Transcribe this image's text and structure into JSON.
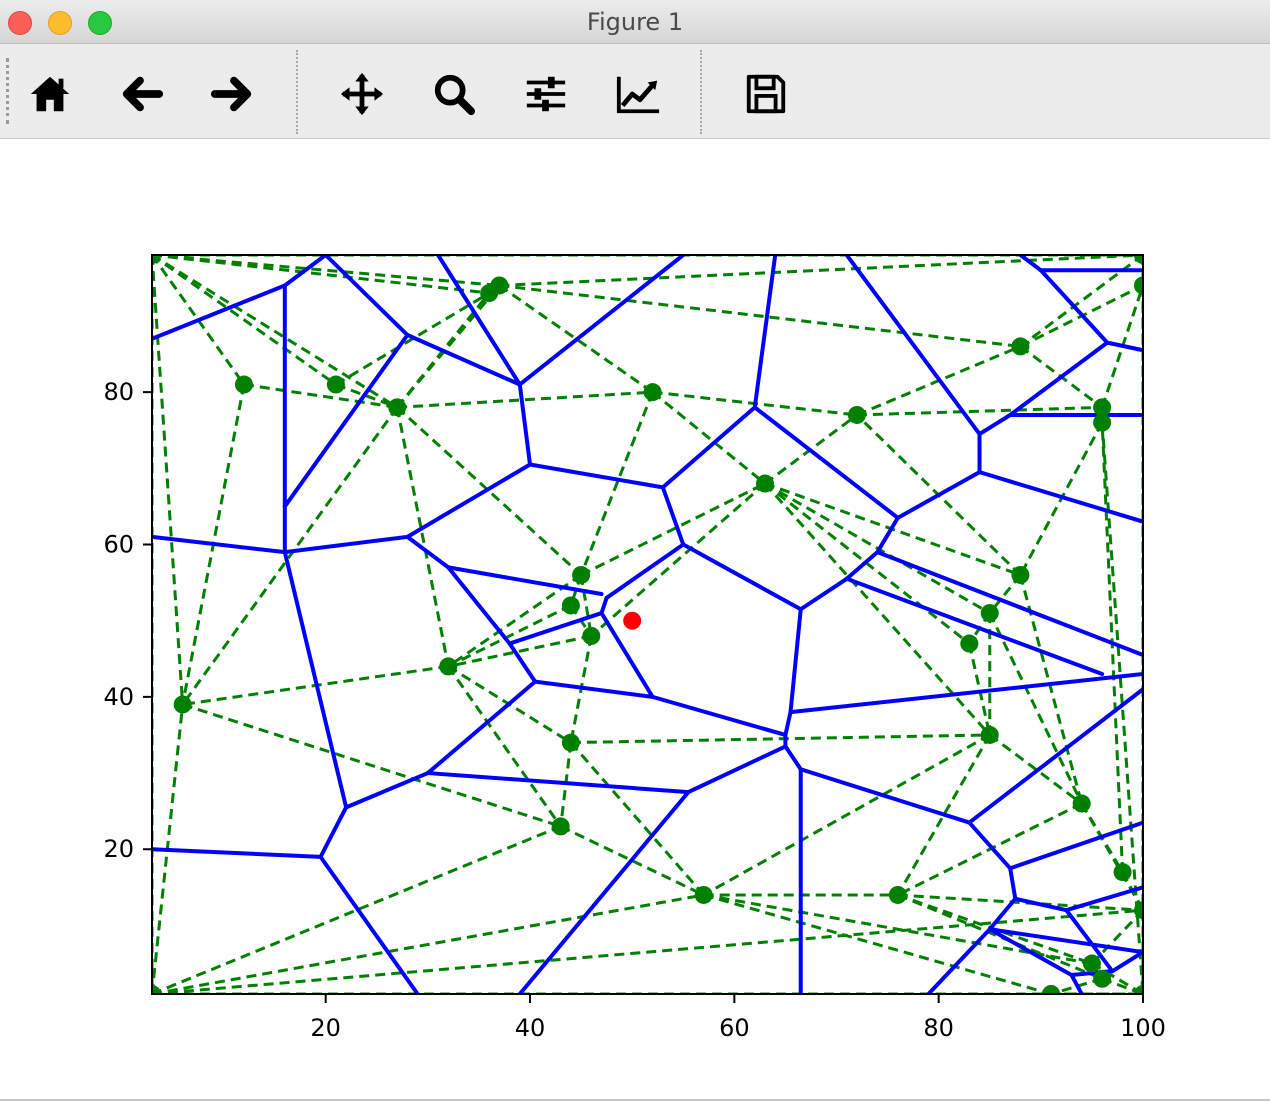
{
  "window": {
    "title": "Figure 1"
  },
  "toolbar": {
    "buttons": [
      {
        "name": "home",
        "icon": "home-icon"
      },
      {
        "name": "back",
        "icon": "arrow-left-icon"
      },
      {
        "name": "forward",
        "icon": "arrow-right-icon"
      },
      {
        "name": "pan",
        "icon": "move-icon"
      },
      {
        "name": "zoom",
        "icon": "magnifier-icon"
      },
      {
        "name": "configure-subplots",
        "icon": "sliders-icon"
      },
      {
        "name": "edit-axis",
        "icon": "line-chart-icon"
      },
      {
        "name": "save",
        "icon": "floppy-disk-icon"
      }
    ]
  },
  "chart_data": {
    "type": "scatter",
    "title": "",
    "xlabel": "",
    "ylabel": "",
    "xlim": [
      3,
      100
    ],
    "ylim": [
      1,
      98
    ],
    "x_ticks": [
      20,
      40,
      60,
      80,
      100
    ],
    "y_ticks": [
      20,
      40,
      60,
      80
    ],
    "grid": false,
    "colors": {
      "points": "#008000",
      "edges": "#008000",
      "voronoi": "#0000ff",
      "highlight": "#ff0000"
    },
    "points": [
      [
        3,
        98
      ],
      [
        100,
        98
      ],
      [
        3,
        1
      ],
      [
        100,
        1
      ],
      [
        12,
        81
      ],
      [
        21,
        81
      ],
      [
        27,
        78
      ],
      [
        36,
        93
      ],
      [
        37,
        94
      ],
      [
        52,
        80
      ],
      [
        72,
        77
      ],
      [
        88,
        86
      ],
      [
        96,
        78
      ],
      [
        96,
        76
      ],
      [
        100,
        94
      ],
      [
        63,
        68
      ],
      [
        45,
        56
      ],
      [
        88,
        56
      ],
      [
        85,
        51
      ],
      [
        83,
        47
      ],
      [
        44,
        52
      ],
      [
        46,
        48
      ],
      [
        32,
        44
      ],
      [
        6,
        39
      ],
      [
        44,
        34
      ],
      [
        85,
        35
      ],
      [
        94,
        26
      ],
      [
        43,
        23
      ],
      [
        98,
        17
      ],
      [
        57,
        14
      ],
      [
        76,
        14
      ],
      [
        100,
        12
      ],
      [
        95,
        5
      ],
      [
        96,
        3
      ],
      [
        91,
        1
      ]
    ],
    "highlight_point": [
      50,
      50
    ],
    "delaunay_edges": [
      [
        0,
        1
      ],
      [
        0,
        2
      ],
      [
        1,
        3
      ],
      [
        2,
        3
      ],
      [
        0,
        4
      ],
      [
        0,
        5
      ],
      [
        0,
        6
      ],
      [
        0,
        7
      ],
      [
        0,
        8
      ],
      [
        0,
        23
      ],
      [
        2,
        23
      ],
      [
        4,
        6
      ],
      [
        4,
        23
      ],
      [
        5,
        6
      ],
      [
        5,
        7
      ],
      [
        6,
        7
      ],
      [
        6,
        8
      ],
      [
        6,
        9
      ],
      [
        7,
        8
      ],
      [
        8,
        9
      ],
      [
        8,
        1
      ],
      [
        8,
        11
      ],
      [
        9,
        10
      ],
      [
        9,
        15
      ],
      [
        10,
        11
      ],
      [
        10,
        12
      ],
      [
        11,
        12
      ],
      [
        11,
        14
      ],
      [
        12,
        14
      ],
      [
        1,
        11
      ],
      [
        1,
        14
      ],
      [
        12,
        13
      ],
      [
        13,
        17
      ],
      [
        13,
        3
      ],
      [
        14,
        3
      ],
      [
        6,
        16
      ],
      [
        9,
        16
      ],
      [
        6,
        22
      ],
      [
        6,
        23
      ],
      [
        16,
        15
      ],
      [
        16,
        20
      ],
      [
        16,
        21
      ],
      [
        15,
        10
      ],
      [
        15,
        17
      ],
      [
        15,
        18
      ],
      [
        15,
        19
      ],
      [
        15,
        25
      ],
      [
        15,
        21
      ],
      [
        17,
        18
      ],
      [
        17,
        26
      ],
      [
        17,
        10
      ],
      [
        18,
        19
      ],
      [
        18,
        25
      ],
      [
        18,
        26
      ],
      [
        19,
        25
      ],
      [
        20,
        22
      ],
      [
        21,
        22
      ],
      [
        21,
        24
      ],
      [
        20,
        21
      ],
      [
        22,
        23
      ],
      [
        22,
        24
      ],
      [
        22,
        27
      ],
      [
        23,
        27
      ],
      [
        2,
        27
      ],
      [
        2,
        29
      ],
      [
        2,
        31
      ],
      [
        24,
        25
      ],
      [
        24,
        27
      ],
      [
        24,
        29
      ],
      [
        25,
        26
      ],
      [
        25,
        29
      ],
      [
        25,
        30
      ],
      [
        26,
        28
      ],
      [
        26,
        30
      ],
      [
        26,
        31
      ],
      [
        27,
        29
      ],
      [
        28,
        31
      ],
      [
        28,
        13
      ],
      [
        29,
        30
      ],
      [
        29,
        32
      ],
      [
        29,
        34
      ],
      [
        30,
        31
      ],
      [
        30,
        32
      ],
      [
        30,
        33
      ],
      [
        31,
        32
      ],
      [
        32,
        33
      ],
      [
        33,
        34
      ],
      [
        33,
        3
      ],
      [
        34,
        3
      ],
      [
        31,
        3
      ],
      [
        32,
        3
      ],
      [
        16,
        22
      ]
    ],
    "voronoi_edges": [
      [
        [
          3,
          87
        ],
        [
          16,
          94
        ]
      ],
      [
        [
          16,
          94
        ],
        [
          20,
          98
        ]
      ],
      [
        [
          16,
          94
        ],
        [
          16,
          65
        ]
      ],
      [
        [
          16,
          65
        ],
        [
          16,
          59
        ]
      ],
      [
        [
          16,
          65
        ],
        [
          28,
          87.5
        ]
      ],
      [
        [
          20,
          98
        ],
        [
          28,
          87.5
        ]
      ],
      [
        [
          28,
          87.5
        ],
        [
          39,
          81
        ]
      ],
      [
        [
          39,
          81
        ],
        [
          55,
          98
        ]
      ],
      [
        [
          31,
          98
        ],
        [
          39,
          81
        ]
      ],
      [
        [
          39,
          81
        ],
        [
          40,
          70.5
        ]
      ],
      [
        [
          40,
          70.5
        ],
        [
          28,
          61
        ]
      ],
      [
        [
          28,
          61
        ],
        [
          16,
          59
        ]
      ],
      [
        [
          16,
          59
        ],
        [
          3,
          61
        ]
      ],
      [
        [
          16,
          59
        ],
        [
          22,
          25.5
        ]
      ],
      [
        [
          22,
          25.5
        ],
        [
          19.5,
          19
        ]
      ],
      [
        [
          19.5,
          19
        ],
        [
          3,
          20
        ]
      ],
      [
        [
          19.5,
          19
        ],
        [
          29,
          1
        ]
      ],
      [
        [
          22,
          25.5
        ],
        [
          30,
          30
        ]
      ],
      [
        [
          30,
          30
        ],
        [
          40.5,
          42
        ]
      ],
      [
        [
          30,
          30
        ],
        [
          55.5,
          27.5
        ]
      ],
      [
        [
          55.5,
          27.5
        ],
        [
          39,
          1
        ]
      ],
      [
        [
          55.5,
          27.5
        ],
        [
          65,
          33.5
        ]
      ],
      [
        [
          28,
          61
        ],
        [
          32,
          57
        ]
      ],
      [
        [
          32,
          57
        ],
        [
          47,
          53.5
        ]
      ],
      [
        [
          32,
          57
        ],
        [
          38,
          47
        ]
      ],
      [
        [
          38,
          47
        ],
        [
          40.5,
          42
        ]
      ],
      [
        [
          38,
          47
        ],
        [
          47,
          51
        ]
      ],
      [
        [
          40.5,
          42
        ],
        [
          52,
          40
        ]
      ],
      [
        [
          52,
          40
        ],
        [
          47,
          51
        ]
      ],
      [
        [
          47,
          51
        ],
        [
          47.5,
          53
        ]
      ],
      [
        [
          47.5,
          53
        ],
        [
          55,
          60
        ]
      ],
      [
        [
          55,
          60
        ],
        [
          53,
          67.5
        ]
      ],
      [
        [
          53,
          67.5
        ],
        [
          40,
          70.5
        ]
      ],
      [
        [
          53,
          67.5
        ],
        [
          62,
          78
        ]
      ],
      [
        [
          62,
          78
        ],
        [
          64,
          98
        ]
      ],
      [
        [
          62,
          78
        ],
        [
          76,
          63.5
        ]
      ],
      [
        [
          55,
          60
        ],
        [
          66.5,
          51.5
        ]
      ],
      [
        [
          66.5,
          51.5
        ],
        [
          71,
          55.5
        ]
      ],
      [
        [
          66.5,
          51.5
        ],
        [
          65.5,
          38
        ]
      ],
      [
        [
          65.5,
          38
        ],
        [
          65,
          35
        ]
      ],
      [
        [
          52,
          40
        ],
        [
          65,
          35
        ]
      ],
      [
        [
          65,
          35
        ],
        [
          65,
          33.5
        ]
      ],
      [
        [
          65.5,
          38
        ],
        [
          100,
          43
        ]
      ],
      [
        [
          65,
          33.5
        ],
        [
          66.5,
          30.5
        ]
      ],
      [
        [
          66.5,
          30.5
        ],
        [
          66.5,
          1
        ]
      ],
      [
        [
          66.5,
          30.5
        ],
        [
          83,
          23.5
        ]
      ],
      [
        [
          71,
          55.5
        ],
        [
          74,
          59
        ]
      ],
      [
        [
          74,
          59
        ],
        [
          76,
          63.5
        ]
      ],
      [
        [
          76,
          63.5
        ],
        [
          84,
          69.5
        ]
      ],
      [
        [
          84,
          69.5
        ],
        [
          84,
          74.5
        ]
      ],
      [
        [
          84,
          74.5
        ],
        [
          71,
          98
        ]
      ],
      [
        [
          84,
          74.5
        ],
        [
          87,
          77
        ]
      ],
      [
        [
          87,
          77
        ],
        [
          100,
          77
        ]
      ],
      [
        [
          84,
          69.5
        ],
        [
          100,
          63
        ]
      ],
      [
        [
          74,
          59
        ],
        [
          100,
          45.5
        ]
      ],
      [
        [
          71,
          55.5
        ],
        [
          96,
          43
        ]
      ],
      [
        [
          100,
          41
        ],
        [
          83,
          23.5
        ]
      ],
      [
        [
          83,
          23.5
        ],
        [
          87,
          17.5
        ]
      ],
      [
        [
          87,
          17.5
        ],
        [
          100,
          23.5
        ]
      ],
      [
        [
          87,
          17.5
        ],
        [
          87.5,
          13.5
        ]
      ],
      [
        [
          87.5,
          13.5
        ],
        [
          92.5,
          12
        ]
      ],
      [
        [
          92.5,
          12
        ],
        [
          100,
          15
        ]
      ],
      [
        [
          92.5,
          12
        ],
        [
          97,
          4
        ]
      ],
      [
        [
          97,
          4
        ],
        [
          100,
          6.5
        ]
      ],
      [
        [
          87.5,
          13.5
        ],
        [
          85,
          9.5
        ]
      ],
      [
        [
          85,
          9.5
        ],
        [
          79,
          1
        ]
      ],
      [
        [
          85,
          9.5
        ],
        [
          100,
          6.5
        ]
      ],
      [
        [
          87,
          77
        ],
        [
          96.5,
          86.5
        ]
      ],
      [
        [
          96.5,
          86.5
        ],
        [
          100,
          85.5
        ]
      ],
      [
        [
          96.5,
          86.5
        ],
        [
          90,
          96
        ]
      ],
      [
        [
          90,
          96
        ],
        [
          88,
          98
        ]
      ],
      [
        [
          90,
          96
        ],
        [
          100,
          96
        ]
      ],
      [
        [
          85,
          9.5
        ],
        [
          93,
          3.5
        ]
      ],
      [
        [
          93,
          3.5
        ],
        [
          97,
          4
        ]
      ],
      [
        [
          93,
          3.5
        ],
        [
          94,
          1
        ]
      ]
    ]
  }
}
